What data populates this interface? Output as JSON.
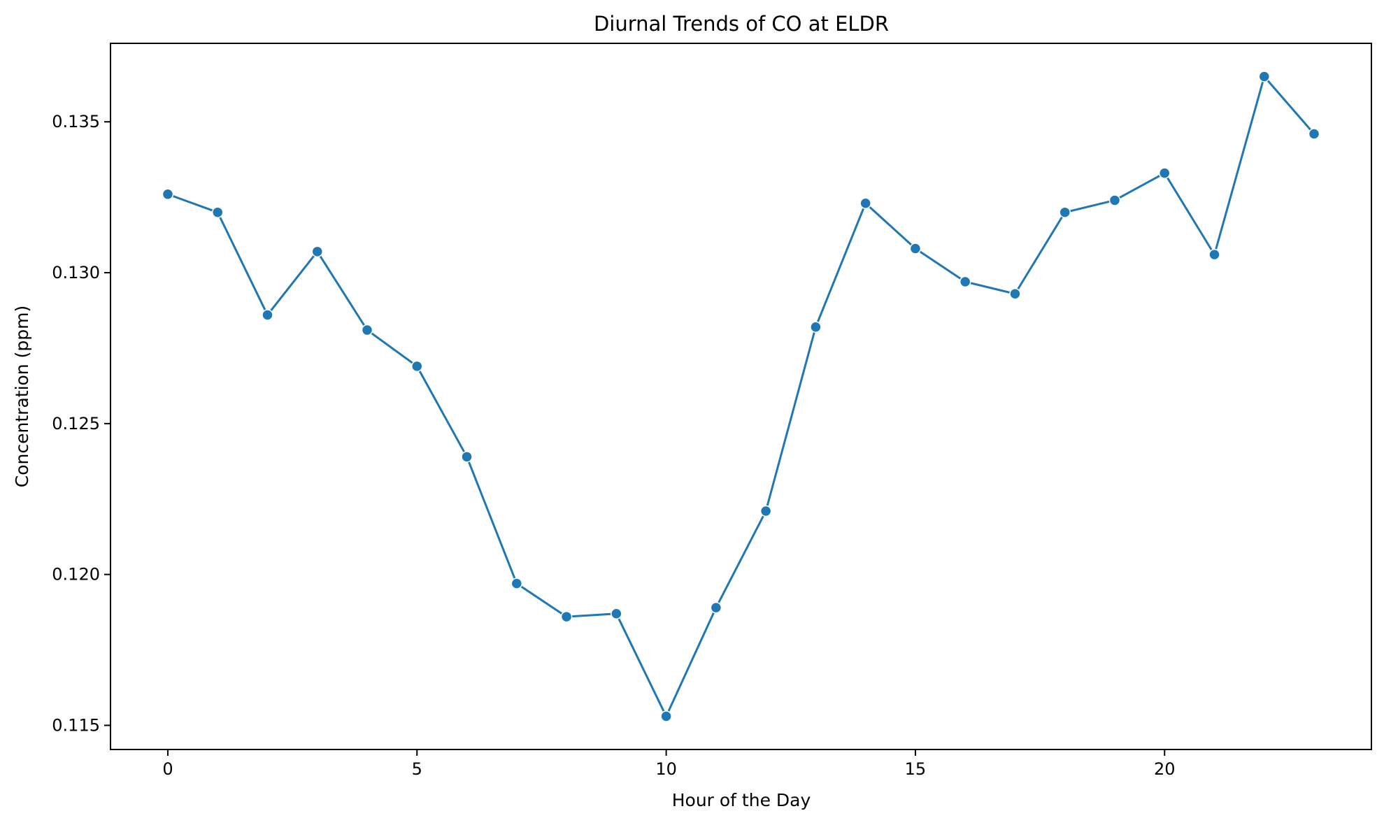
{
  "chart_data": {
    "type": "line",
    "title": "Diurnal Trends of CO at ELDR",
    "xlabel": "Hour of the Day",
    "ylabel": "Concentration (ppm)",
    "xlim": [
      -1.15,
      24.15
    ],
    "ylim": [
      0.1142,
      0.1376
    ],
    "xticks": [
      0,
      5,
      10,
      15,
      20
    ],
    "yticks": [
      0.115,
      0.12,
      0.125,
      0.13,
      0.135
    ],
    "ytick_format_decimals": 3,
    "grid": false,
    "legend": "none",
    "series": [
      {
        "color": "#1f77b4",
        "marker": "circle",
        "x": [
          0,
          1,
          2,
          3,
          4,
          5,
          6,
          7,
          8,
          9,
          10,
          11,
          12,
          13,
          14,
          15,
          16,
          17,
          18,
          19,
          20,
          21,
          22,
          23
        ],
        "y": [
          0.1326,
          0.132,
          0.1286,
          0.1307,
          0.1281,
          0.1269,
          0.1239,
          0.1197,
          0.1186,
          0.1187,
          0.1153,
          0.1189,
          0.1221,
          0.1282,
          0.1323,
          0.1308,
          0.1297,
          0.1293,
          0.132,
          0.1324,
          0.1333,
          0.1306,
          0.1365,
          0.1346
        ]
      }
    ]
  }
}
